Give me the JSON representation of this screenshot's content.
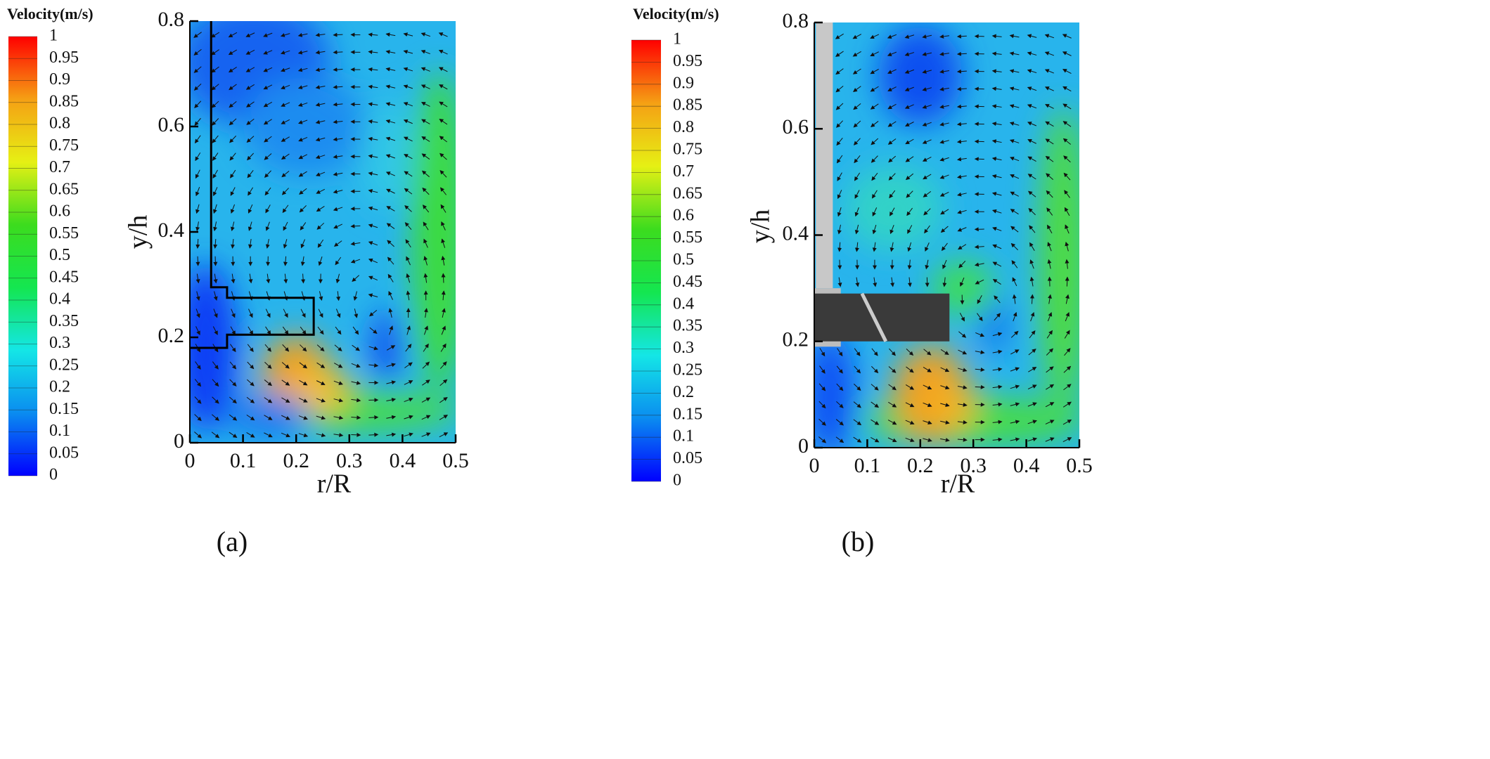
{
  "chart_data": [
    {
      "type": "contour",
      "panel_label": "(a)",
      "colorbar_title": "Velocity(m/s)",
      "clim": [
        0,
        1
      ],
      "colorbar_ticks": [
        0,
        0.05,
        0.1,
        0.15,
        0.2,
        0.25,
        0.3,
        0.35,
        0.4,
        0.45,
        0.5,
        0.55,
        0.6,
        0.65,
        0.7,
        0.75,
        0.8,
        0.85,
        0.9,
        0.95,
        1
      ],
      "colormap": [
        "#0000ff",
        "#0a8cf0",
        "#14e6e6",
        "#14e650",
        "#3cdc1e",
        "#e6f014",
        "#f5a014",
        "#ff0000"
      ],
      "xlabel": "r/R",
      "ylabel": "y/h",
      "xlim": [
        0,
        0.5
      ],
      "xticks": [
        0,
        0.1,
        0.2,
        0.3,
        0.4,
        0.5
      ],
      "ylim": [
        0,
        0.8
      ],
      "yticks": [
        0,
        0.2,
        0.4,
        0.6,
        0.8
      ]
    },
    {
      "type": "contour",
      "panel_label": "(b)",
      "colorbar_title": "Velocity(m/s)",
      "clim": [
        0,
        1
      ],
      "colorbar_ticks": [
        0,
        0.05,
        0.1,
        0.15,
        0.2,
        0.25,
        0.3,
        0.35,
        0.4,
        0.45,
        0.5,
        0.55,
        0.6,
        0.65,
        0.7,
        0.75,
        0.8,
        0.85,
        0.9,
        0.95,
        1
      ],
      "colormap": [
        "#0000ff",
        "#0a8cf0",
        "#14e6e6",
        "#14e650",
        "#3cdc1e",
        "#e6f014",
        "#f5a014",
        "#ff0000"
      ],
      "xlabel": "r/R",
      "ylabel": "y/h",
      "xlim": [
        0,
        0.5
      ],
      "xticks": [
        0,
        0.1,
        0.2,
        0.3,
        0.4,
        0.5
      ],
      "ylim": [
        0,
        0.8
      ],
      "yticks": [
        0,
        0.2,
        0.4,
        0.6,
        0.8
      ]
    }
  ]
}
